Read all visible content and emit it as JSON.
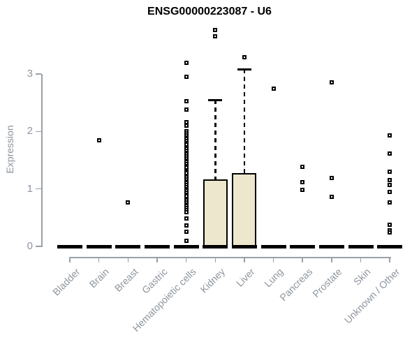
{
  "chart": {
    "title": "ENSG00000223087 - U6",
    "ylabel": "Expression"
  },
  "chart_data": {
    "type": "boxplot",
    "title": "ENSG00000223087 - U6",
    "xlabel": "",
    "ylabel": "Expression",
    "ylim": [
      0,
      3.9
    ],
    "yticks": [
      0,
      1,
      2,
      3
    ],
    "grid": false,
    "legend": false,
    "categories": [
      "Bladder",
      "Brain",
      "Breast",
      "Gastric",
      "Hematopoietic cells",
      "Kidney",
      "Liver",
      "Lung",
      "Pancreas",
      "Prostate",
      "Skin",
      "Unknown / Other"
    ],
    "series": [
      {
        "name": "Bladder",
        "q1": 0,
        "median": 0,
        "q3": 0,
        "whisker_low": 0,
        "whisker_high": 0,
        "outliers": []
      },
      {
        "name": "Brain",
        "q1": 0,
        "median": 0,
        "q3": 0,
        "whisker_low": 0,
        "whisker_high": 0,
        "outliers": [
          1.85
        ]
      },
      {
        "name": "Breast",
        "q1": 0,
        "median": 0,
        "q3": 0,
        "whisker_low": 0,
        "whisker_high": 0,
        "outliers": [
          0.77
        ]
      },
      {
        "name": "Gastric",
        "q1": 0,
        "median": 0,
        "q3": 0,
        "whisker_low": 0,
        "whisker_high": 0,
        "outliers": []
      },
      {
        "name": "Hematopoietic cells",
        "q1": 0,
        "median": 0,
        "q3": 0,
        "whisker_low": 0,
        "whisker_high": 0,
        "outliers": [
          3.19,
          2.95,
          2.53,
          2.38,
          2.16,
          2.1,
          2.0,
          1.97,
          1.93,
          1.9,
          1.87,
          1.83,
          1.8,
          1.77,
          1.73,
          1.7,
          1.67,
          1.63,
          1.6,
          1.57,
          1.53,
          1.5,
          1.47,
          1.43,
          1.4,
          1.37,
          1.33,
          1.3,
          1.27,
          1.23,
          1.2,
          1.17,
          1.13,
          1.1,
          1.07,
          1.03,
          1.0,
          0.97,
          0.93,
          0.9,
          0.87,
          0.83,
          0.8,
          0.77,
          0.73,
          0.7,
          0.67,
          0.63,
          0.6,
          0.49,
          0.36,
          0.26,
          0.1
        ]
      },
      {
        "name": "Kidney",
        "q1": 0,
        "median": 0,
        "q3": 1.17,
        "whisker_low": 0,
        "whisker_high": 2.55,
        "outliers": [
          3.77,
          3.66
        ]
      },
      {
        "name": "Liver",
        "q1": 0,
        "median": 0,
        "q3": 1.28,
        "whisker_low": 0,
        "whisker_high": 3.08,
        "outliers": [
          3.29
        ]
      },
      {
        "name": "Lung",
        "q1": 0,
        "median": 0,
        "q3": 0,
        "whisker_low": 0,
        "whisker_high": 0,
        "outliers": [
          2.74
        ]
      },
      {
        "name": "Pancreas",
        "q1": 0,
        "median": 0,
        "q3": 0,
        "whisker_low": 0,
        "whisker_high": 0,
        "outliers": [
          1.38,
          1.12,
          0.98
        ]
      },
      {
        "name": "Prostate",
        "q1": 0,
        "median": 0,
        "q3": 0,
        "whisker_low": 0,
        "whisker_high": 0,
        "outliers": [
          2.85,
          1.19,
          0.86
        ]
      },
      {
        "name": "Skin",
        "q1": 0,
        "median": 0,
        "q3": 0,
        "whisker_low": 0,
        "whisker_high": 0,
        "outliers": []
      },
      {
        "name": "Unknown / Other",
        "q1": 0,
        "median": 0,
        "q3": 0,
        "whisker_low": 0,
        "whisker_high": 0,
        "outliers": [
          1.93,
          1.61,
          1.3,
          1.15,
          1.07,
          0.95,
          0.77,
          0.38,
          0.28,
          0.24
        ]
      }
    ],
    "colors": {
      "box_fill": "#EDE8CD",
      "box_border": "#000000",
      "whisker": "#000000",
      "axis_line": "#9AA0A6",
      "tick_label": "#8D959E",
      "title": "#000000",
      "background": "#FFFFFF"
    }
  }
}
